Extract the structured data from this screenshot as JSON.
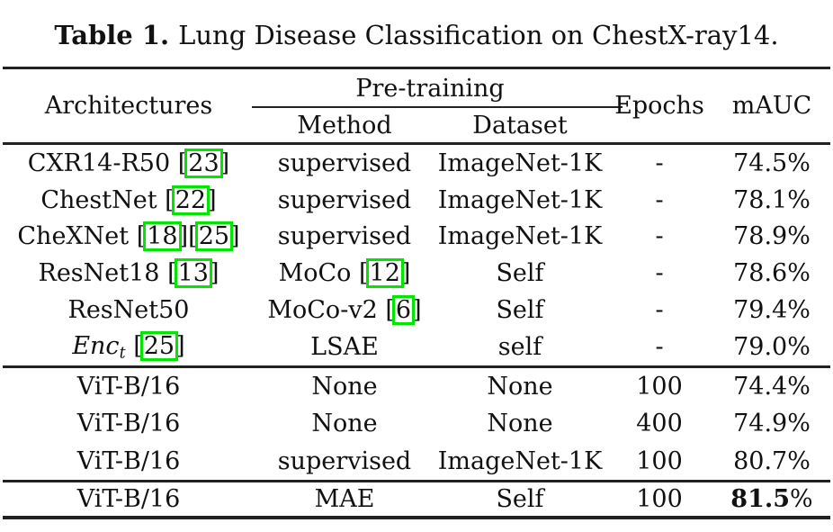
{
  "caption": {
    "label": "Table 1.",
    "text": "Lung Disease Classification on ChestX-ray14."
  },
  "colors": {
    "cite_box_green": "#00e600",
    "rule": "#222222",
    "text": "#111111"
  },
  "header": {
    "architectures": "Architectures",
    "pretraining": "Pre-training",
    "method": "Method",
    "dataset": "Dataset",
    "epochs": "Epochs",
    "mauc": "mAUC"
  },
  "rows": [
    {
      "group": 1,
      "arch": {
        "text": "CXR14-R50",
        "italic": false,
        "cites": [
          "23"
        ]
      },
      "method": {
        "text": "supervised",
        "cites": []
      },
      "dataset": "ImageNet-1K",
      "epochs": "-",
      "mauc": "74.5%",
      "mauc_bold": false
    },
    {
      "group": 1,
      "arch": {
        "text": "ChestNet",
        "italic": false,
        "cites": [
          "22"
        ]
      },
      "method": {
        "text": "supervised",
        "cites": []
      },
      "dataset": "ImageNet-1K",
      "epochs": "-",
      "mauc": "78.1%",
      "mauc_bold": false
    },
    {
      "group": 1,
      "arch": {
        "text": "CheXNet",
        "italic": false,
        "cites": [
          "18",
          "25"
        ]
      },
      "method": {
        "text": "supervised",
        "cites": []
      },
      "dataset": "ImageNet-1K",
      "epochs": "-",
      "mauc": "78.9%",
      "mauc_bold": false
    },
    {
      "group": 1,
      "arch": {
        "text": "ResNet18",
        "italic": false,
        "cites": [
          "13"
        ]
      },
      "method": {
        "text": "MoCo",
        "cites": [
          "12"
        ]
      },
      "dataset": "Self",
      "epochs": "-",
      "mauc": "78.6%",
      "mauc_bold": false
    },
    {
      "group": 1,
      "arch": {
        "text": "ResNet50",
        "italic": false,
        "cites": []
      },
      "method": {
        "text": "MoCo-v2",
        "cites": [
          "6"
        ]
      },
      "dataset": "Self",
      "epochs": "-",
      "mauc": "79.4%",
      "mauc_bold": false
    },
    {
      "group": 1,
      "arch": {
        "text": "Enc",
        "sub": "t",
        "italic": true,
        "cites": [
          "25"
        ]
      },
      "method": {
        "text": "LSAE",
        "cites": []
      },
      "dataset": "self",
      "epochs": "-",
      "mauc": "79.0%",
      "mauc_bold": false
    },
    {
      "group": 2,
      "arch": {
        "text": "ViT-B/16",
        "italic": false,
        "cites": []
      },
      "method": {
        "text": "None",
        "cites": []
      },
      "dataset": "None",
      "epochs": "100",
      "mauc": "74.4%",
      "mauc_bold": false
    },
    {
      "group": 2,
      "arch": {
        "text": "ViT-B/16",
        "italic": false,
        "cites": []
      },
      "method": {
        "text": "None",
        "cites": []
      },
      "dataset": "None",
      "epochs": "400",
      "mauc": "74.9%",
      "mauc_bold": false
    },
    {
      "group": 2,
      "arch": {
        "text": "ViT-B/16",
        "italic": false,
        "cites": []
      },
      "method": {
        "text": "supervised",
        "cites": []
      },
      "dataset": "ImageNet-1K",
      "epochs": "100",
      "mauc": "80.7%",
      "mauc_bold": false
    },
    {
      "group": 3,
      "arch": {
        "text": "ViT-B/16",
        "italic": false,
        "cites": []
      },
      "method": {
        "text": "MAE",
        "cites": []
      },
      "dataset": "Self",
      "epochs": "100",
      "mauc": "81.5%",
      "mauc_bold": true
    }
  ]
}
